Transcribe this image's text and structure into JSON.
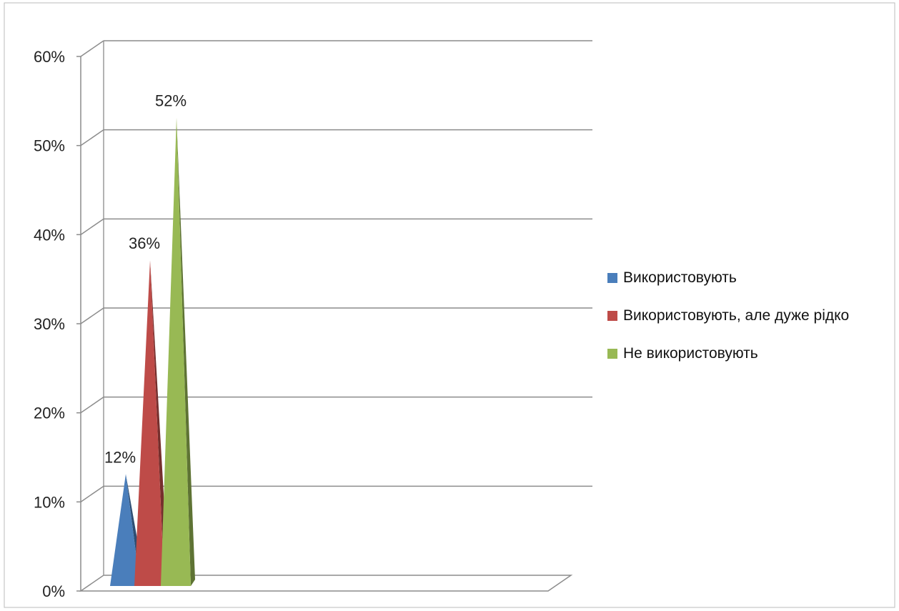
{
  "chart_data": {
    "type": "bar",
    "style": "3d-pyramid",
    "title": "",
    "xlabel": "",
    "ylabel": "",
    "ylim": [
      0,
      60
    ],
    "yticks": [
      "0%",
      "10%",
      "20%",
      "30%",
      "40%",
      "50%",
      "60%"
    ],
    "ytick_values": [
      0,
      10,
      20,
      30,
      40,
      50,
      60
    ],
    "grid": true,
    "legend_position": "right",
    "series": [
      {
        "name": "Використовують",
        "values": [
          12
        ],
        "label": "12%",
        "color": "#4a7ebb"
      },
      {
        "name": "Використовують, але дуже рідко",
        "values": [
          36
        ],
        "label": "36%",
        "color": "#be4b48"
      },
      {
        "name": "Не використовують",
        "values": [
          52
        ],
        "label": "52%",
        "color": "#98b954"
      }
    ]
  }
}
